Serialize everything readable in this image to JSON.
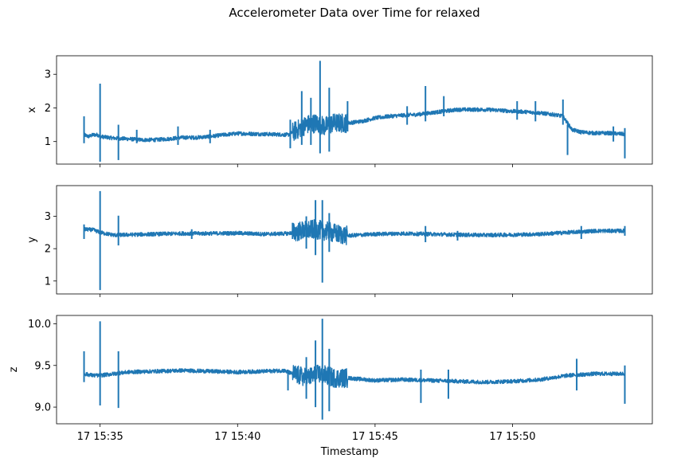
{
  "figure_title": "Accelerometer Data over Time for relaxed",
  "chart_data": [
    {
      "type": "line",
      "title": "",
      "xlabel": "",
      "ylabel": "x",
      "color": "#1f77b4",
      "xlim": [
        "2024-01-17T15:33:25",
        "2024-01-17T15:55:05"
      ],
      "ylim": [
        0.33,
        3.55
      ],
      "yticks": [
        1,
        2,
        3
      ],
      "xtick_labels_visible": false,
      "x_range": [
        "2024-01-17T15:34:25",
        "2024-01-17T15:54:05"
      ],
      "series": [
        {
          "points": [
            [
              "15:34:25",
              1.2
            ],
            [
              "15:34:35",
              1.15
            ],
            [
              "15:34:45",
              1.2
            ],
            [
              "15:34:55",
              1.2
            ],
            [
              "15:35:00",
              1.15
            ],
            [
              "15:35:30",
              1.1
            ],
            [
              "15:36:00",
              1.08
            ],
            [
              "15:36:30",
              1.05
            ],
            [
              "15:37:00",
              1.05
            ],
            [
              "15:37:30",
              1.08
            ],
            [
              "15:38:00",
              1.12
            ],
            [
              "15:38:30",
              1.12
            ],
            [
              "15:39:00",
              1.15
            ],
            [
              "15:39:30",
              1.2
            ],
            [
              "15:40:00",
              1.24
            ],
            [
              "15:40:30",
              1.23
            ],
            [
              "15:41:00",
              1.22
            ],
            [
              "15:41:30",
              1.21
            ],
            [
              "15:41:50",
              1.2
            ],
            [
              "15:42:10",
              1.35
            ],
            [
              "15:42:30",
              1.5
            ],
            [
              "15:42:50",
              1.55
            ],
            [
              "15:43:10",
              1.45
            ],
            [
              "15:43:30",
              1.55
            ],
            [
              "15:44:00",
              1.55
            ],
            [
              "15:44:30",
              1.6
            ],
            [
              "15:45:00",
              1.7
            ],
            [
              "15:45:30",
              1.75
            ],
            [
              "15:46:00",
              1.78
            ],
            [
              "15:46:30",
              1.8
            ],
            [
              "15:47:00",
              1.85
            ],
            [
              "15:47:30",
              1.9
            ],
            [
              "15:48:00",
              1.95
            ],
            [
              "15:48:30",
              1.95
            ],
            [
              "15:49:00",
              1.95
            ],
            [
              "15:49:30",
              1.93
            ],
            [
              "15:50:00",
              1.9
            ],
            [
              "15:50:30",
              1.88
            ],
            [
              "15:51:00",
              1.85
            ],
            [
              "15:51:30",
              1.8
            ],
            [
              "15:51:50",
              1.75
            ],
            [
              "15:52:10",
              1.35
            ],
            [
              "15:52:30",
              1.28
            ],
            [
              "15:53:00",
              1.25
            ],
            [
              "15:53:30",
              1.25
            ],
            [
              "15:54:05",
              1.22
            ]
          ]
        }
      ],
      "spikes": [
        [
          "15:34:25",
          0.95,
          1.75
        ],
        [
          "15:35:00",
          0.4,
          2.72
        ],
        [
          "15:35:40",
          0.45,
          1.5
        ],
        [
          "15:36:20",
          0.95,
          1.35
        ],
        [
          "15:37:50",
          0.9,
          1.45
        ],
        [
          "15:39:00",
          0.95,
          1.35
        ],
        [
          "15:41:55",
          0.8,
          1.65
        ],
        [
          "15:42:20",
          0.9,
          2.5
        ],
        [
          "15:42:40",
          0.9,
          2.3
        ],
        [
          "15:43:00",
          0.65,
          3.4
        ],
        [
          "15:43:20",
          0.7,
          2.6
        ],
        [
          "15:44:00",
          1.3,
          2.2
        ],
        [
          "15:46:10",
          1.5,
          2.05
        ],
        [
          "15:46:50",
          1.6,
          2.65
        ],
        [
          "15:47:30",
          1.75,
          2.35
        ],
        [
          "15:50:10",
          1.65,
          2.2
        ],
        [
          "15:50:50",
          1.6,
          2.2
        ],
        [
          "15:51:50",
          1.5,
          2.25
        ],
        [
          "15:52:00",
          0.6,
          1.5
        ],
        [
          "15:53:40",
          1.0,
          1.45
        ],
        [
          "15:54:05",
          0.5,
          1.4
        ]
      ]
    },
    {
      "type": "line",
      "title": "",
      "xlabel": "",
      "ylabel": "y",
      "color": "#1f77b4",
      "xlim": [
        "2024-01-17T15:33:25",
        "2024-01-17T15:55:05"
      ],
      "ylim": [
        0.6,
        3.95
      ],
      "yticks": [
        1,
        2,
        3
      ],
      "xtick_labels_visible": false,
      "x_range": [
        "2024-01-17T15:34:25",
        "2024-01-17T15:54:05"
      ],
      "series": [
        {
          "points": [
            [
              "15:34:25",
              2.6
            ],
            [
              "15:34:45",
              2.58
            ],
            [
              "15:35:00",
              2.5
            ],
            [
              "15:35:30",
              2.42
            ],
            [
              "15:36:00",
              2.43
            ],
            [
              "15:37:00",
              2.45
            ],
            [
              "15:38:00",
              2.47
            ],
            [
              "15:39:00",
              2.47
            ],
            [
              "15:40:00",
              2.48
            ],
            [
              "15:41:00",
              2.45
            ],
            [
              "15:41:50",
              2.47
            ],
            [
              "15:42:20",
              2.55
            ],
            [
              "15:42:50",
              2.6
            ],
            [
              "15:43:10",
              2.55
            ],
            [
              "15:43:40",
              2.45
            ],
            [
              "15:44:00",
              2.4
            ],
            [
              "15:45:00",
              2.45
            ],
            [
              "15:46:00",
              2.47
            ],
            [
              "15:47:00",
              2.45
            ],
            [
              "15:48:00",
              2.43
            ],
            [
              "15:49:00",
              2.42
            ],
            [
              "15:50:00",
              2.43
            ],
            [
              "15:51:00",
              2.45
            ],
            [
              "15:52:00",
              2.5
            ],
            [
              "15:53:00",
              2.55
            ],
            [
              "15:54:05",
              2.55
            ]
          ]
        }
      ],
      "spikes": [
        [
          "15:34:25",
          2.3,
          2.75
        ],
        [
          "15:35:00",
          0.72,
          3.78
        ],
        [
          "15:35:40",
          2.1,
          3.02
        ],
        [
          "15:38:20",
          2.3,
          2.6
        ],
        [
          "15:42:00",
          2.3,
          2.8
        ],
        [
          "15:42:30",
          2.0,
          3.0
        ],
        [
          "15:42:50",
          1.8,
          3.5
        ],
        [
          "15:43:05",
          0.95,
          3.5
        ],
        [
          "15:43:20",
          1.9,
          3.1
        ],
        [
          "15:46:50",
          2.2,
          2.7
        ],
        [
          "15:48:00",
          2.25,
          2.55
        ],
        [
          "15:52:30",
          2.3,
          2.7
        ],
        [
          "15:54:05",
          2.4,
          2.7
        ]
      ]
    },
    {
      "type": "line",
      "title": "",
      "xlabel": "Timestamp",
      "ylabel": "z",
      "color": "#1f77b4",
      "xlim": [
        "2024-01-17T15:33:25",
        "2024-01-17T15:55:05"
      ],
      "ylim": [
        8.8,
        10.1
      ],
      "yticks": [
        9.0,
        9.5,
        10.0
      ],
      "ytick_labels": [
        "9.0",
        "9.5",
        "10.0"
      ],
      "xticks": [
        "15:35",
        "15:40",
        "15:45",
        "15:50"
      ],
      "xtick_labels": [
        "17 15:35",
        "17 15:40",
        "17 15:45",
        "17 15:50"
      ],
      "x_range": [
        "2024-01-17T15:34:25",
        "2024-01-17T15:54:05"
      ],
      "series": [
        {
          "points": [
            [
              "15:34:25",
              9.4
            ],
            [
              "15:34:45",
              9.38
            ],
            [
              "15:35:00",
              9.38
            ],
            [
              "15:35:30",
              9.4
            ],
            [
              "15:36:00",
              9.42
            ],
            [
              "15:37:00",
              9.43
            ],
            [
              "15:38:00",
              9.44
            ],
            [
              "15:39:00",
              9.43
            ],
            [
              "15:40:00",
              9.42
            ],
            [
              "15:41:00",
              9.43
            ],
            [
              "15:41:40",
              9.44
            ],
            [
              "15:42:00",
              9.4
            ],
            [
              "15:42:30",
              9.35
            ],
            [
              "15:43:00",
              9.4
            ],
            [
              "15:43:30",
              9.35
            ],
            [
              "15:44:00",
              9.35
            ],
            [
              "15:45:00",
              9.32
            ],
            [
              "15:46:00",
              9.33
            ],
            [
              "15:47:00",
              9.32
            ],
            [
              "15:48:00",
              9.31
            ],
            [
              "15:49:00",
              9.3
            ],
            [
              "15:50:00",
              9.31
            ],
            [
              "15:51:00",
              9.33
            ],
            [
              "15:52:00",
              9.38
            ],
            [
              "15:53:00",
              9.4
            ],
            [
              "15:54:05",
              9.4
            ]
          ]
        }
      ],
      "spikes": [
        [
          "15:34:25",
          9.3,
          9.67
        ],
        [
          "15:35:00",
          9.02,
          10.03
        ],
        [
          "15:35:40",
          8.99,
          9.67
        ],
        [
          "15:41:50",
          9.2,
          9.45
        ],
        [
          "15:42:30",
          9.1,
          9.6
        ],
        [
          "15:42:50",
          9.0,
          9.8
        ],
        [
          "15:43:05",
          8.85,
          10.06
        ],
        [
          "15:43:20",
          8.95,
          9.7
        ],
        [
          "15:46:40",
          9.05,
          9.45
        ],
        [
          "15:47:40",
          9.1,
          9.45
        ],
        [
          "15:52:20",
          9.2,
          9.58
        ],
        [
          "15:54:05",
          9.04,
          9.5
        ]
      ]
    }
  ]
}
